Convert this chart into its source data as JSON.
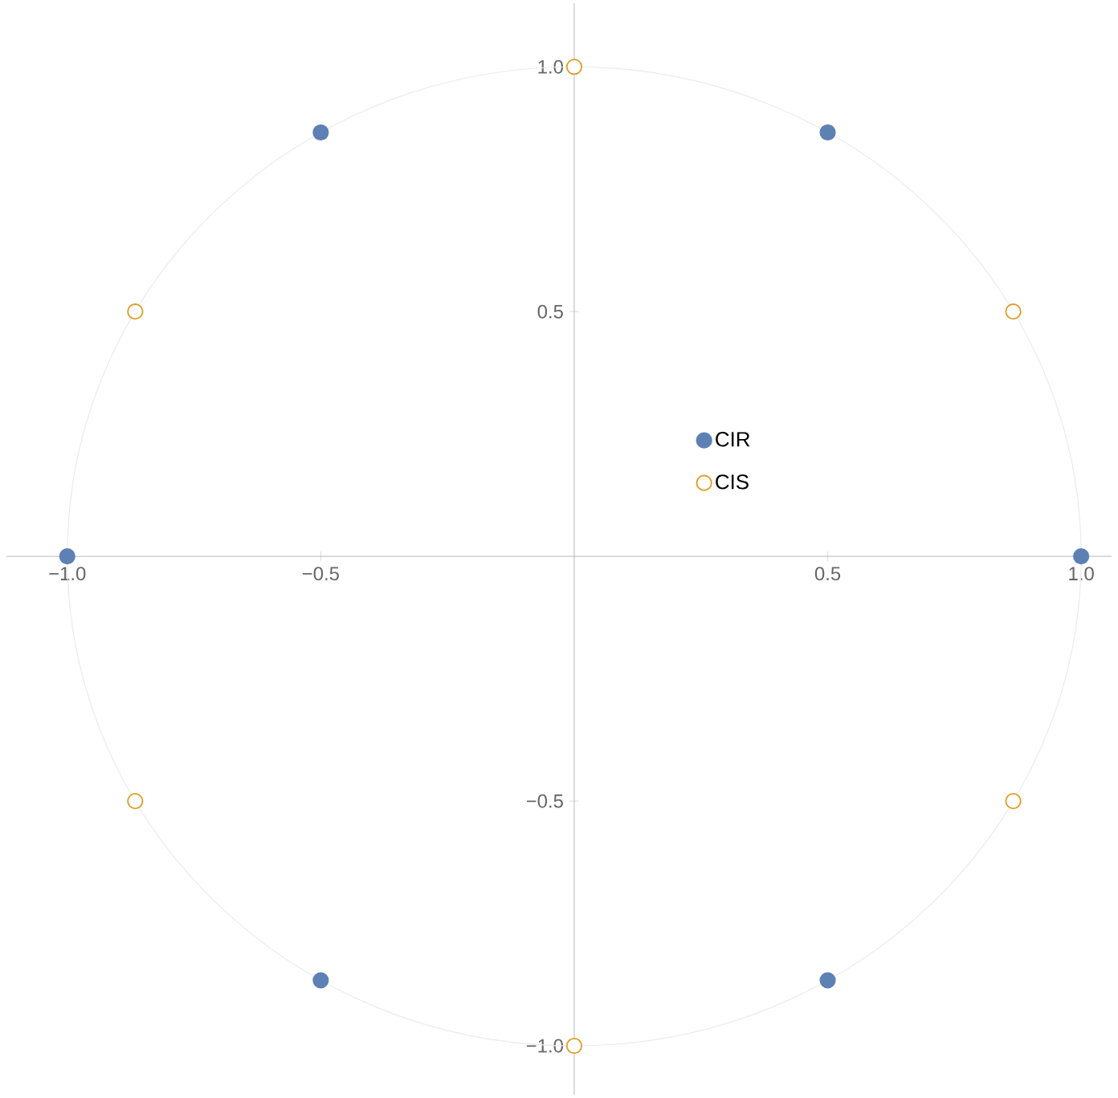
{
  "chart_data": {
    "type": "scatter",
    "xlim": [
      -1.12,
      1.06
    ],
    "ylim": [
      -1.1,
      1.13
    ],
    "xticks": [
      {
        "value": -1,
        "label": "−1.0"
      },
      {
        "value": -0.5,
        "label": "−0.5"
      },
      {
        "value": 0.5,
        "label": "0.5"
      },
      {
        "value": 1,
        "label": "1.0"
      }
    ],
    "yticks": [
      {
        "value": -1,
        "label": "−1.0"
      },
      {
        "value": -0.5,
        "label": "−0.5"
      },
      {
        "value": 0.5,
        "label": "0.5"
      },
      {
        "value": 1,
        "label": "1.0"
      }
    ],
    "legend": "center",
    "series": [
      {
        "name": "CIR",
        "color": "#5e81b5",
        "x": [
          1,
          0.5,
          -0.5,
          -1,
          -0.5,
          0.5
        ],
        "values": [
          0,
          0.866,
          0.866,
          0,
          -0.866,
          -0.866
        ]
      },
      {
        "name": "CIS",
        "color": "#e19c24",
        "x": [
          0,
          -0.866,
          -0.866,
          0,
          0.866,
          0.866
        ],
        "values": [
          1,
          0.5,
          -0.5,
          -1,
          -0.5,
          0.5
        ]
      }
    ]
  }
}
